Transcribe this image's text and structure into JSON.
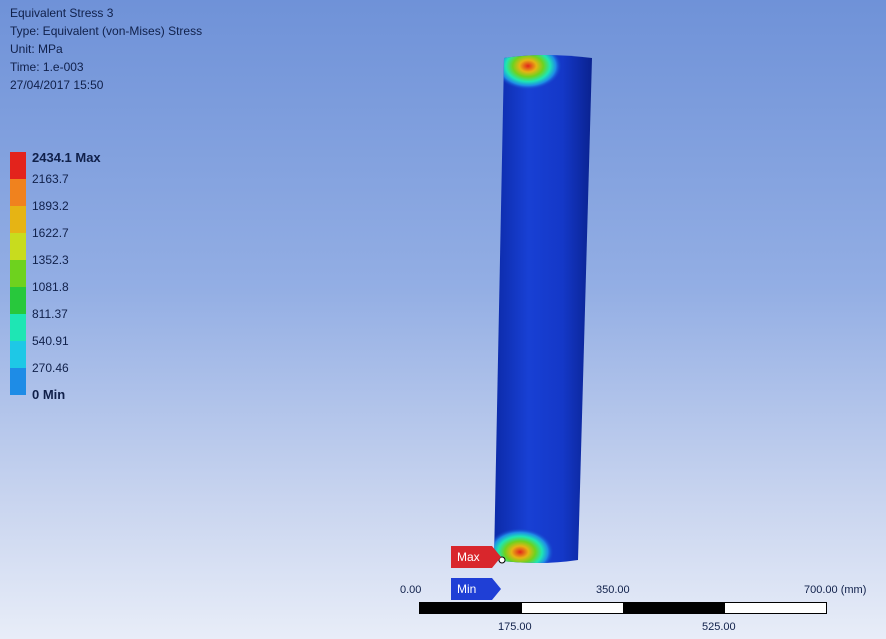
{
  "result": {
    "title": "Equivalent Stress 3",
    "type": "Type: Equivalent (von-Mises) Stress",
    "unit": "Unit: MPa",
    "time": "Time: 1.e-003",
    "date": "27/04/2017 15:50"
  },
  "legend": {
    "entries": [
      {
        "label": "2434.1 Max",
        "color": "#e3231c"
      },
      {
        "label": "2163.7",
        "color": "#f0821e"
      },
      {
        "label": "1893.2",
        "color": "#e6b414"
      },
      {
        "label": "1622.7",
        "color": "#c8dc1e"
      },
      {
        "label": "1352.3",
        "color": "#6ed21e"
      },
      {
        "label": "1081.8",
        "color": "#28c83c"
      },
      {
        "label": "811.37",
        "color": "#1ee6b4"
      },
      {
        "label": "540.91",
        "color": "#1ec8e6"
      },
      {
        "label": "270.46",
        "color": "#1e8ce6"
      },
      {
        "label": "0 Min",
        "color": "#0a28d2"
      }
    ]
  },
  "probes": {
    "max_label": "Max",
    "min_label": "Min",
    "max_color": "#d9262c",
    "min_color": "#1f3fd6"
  },
  "scale": {
    "top_labels": [
      "0.00",
      "350.00",
      "700.00 (mm)"
    ],
    "bottom_labels": [
      "175.00",
      "525.00"
    ]
  },
  "model": {
    "body_color": "#1438c8",
    "hotspot_colors": [
      "#e3231c",
      "#e6b414",
      "#6ed21e",
      "#1ee6b4",
      "#1e8ce6"
    ]
  }
}
